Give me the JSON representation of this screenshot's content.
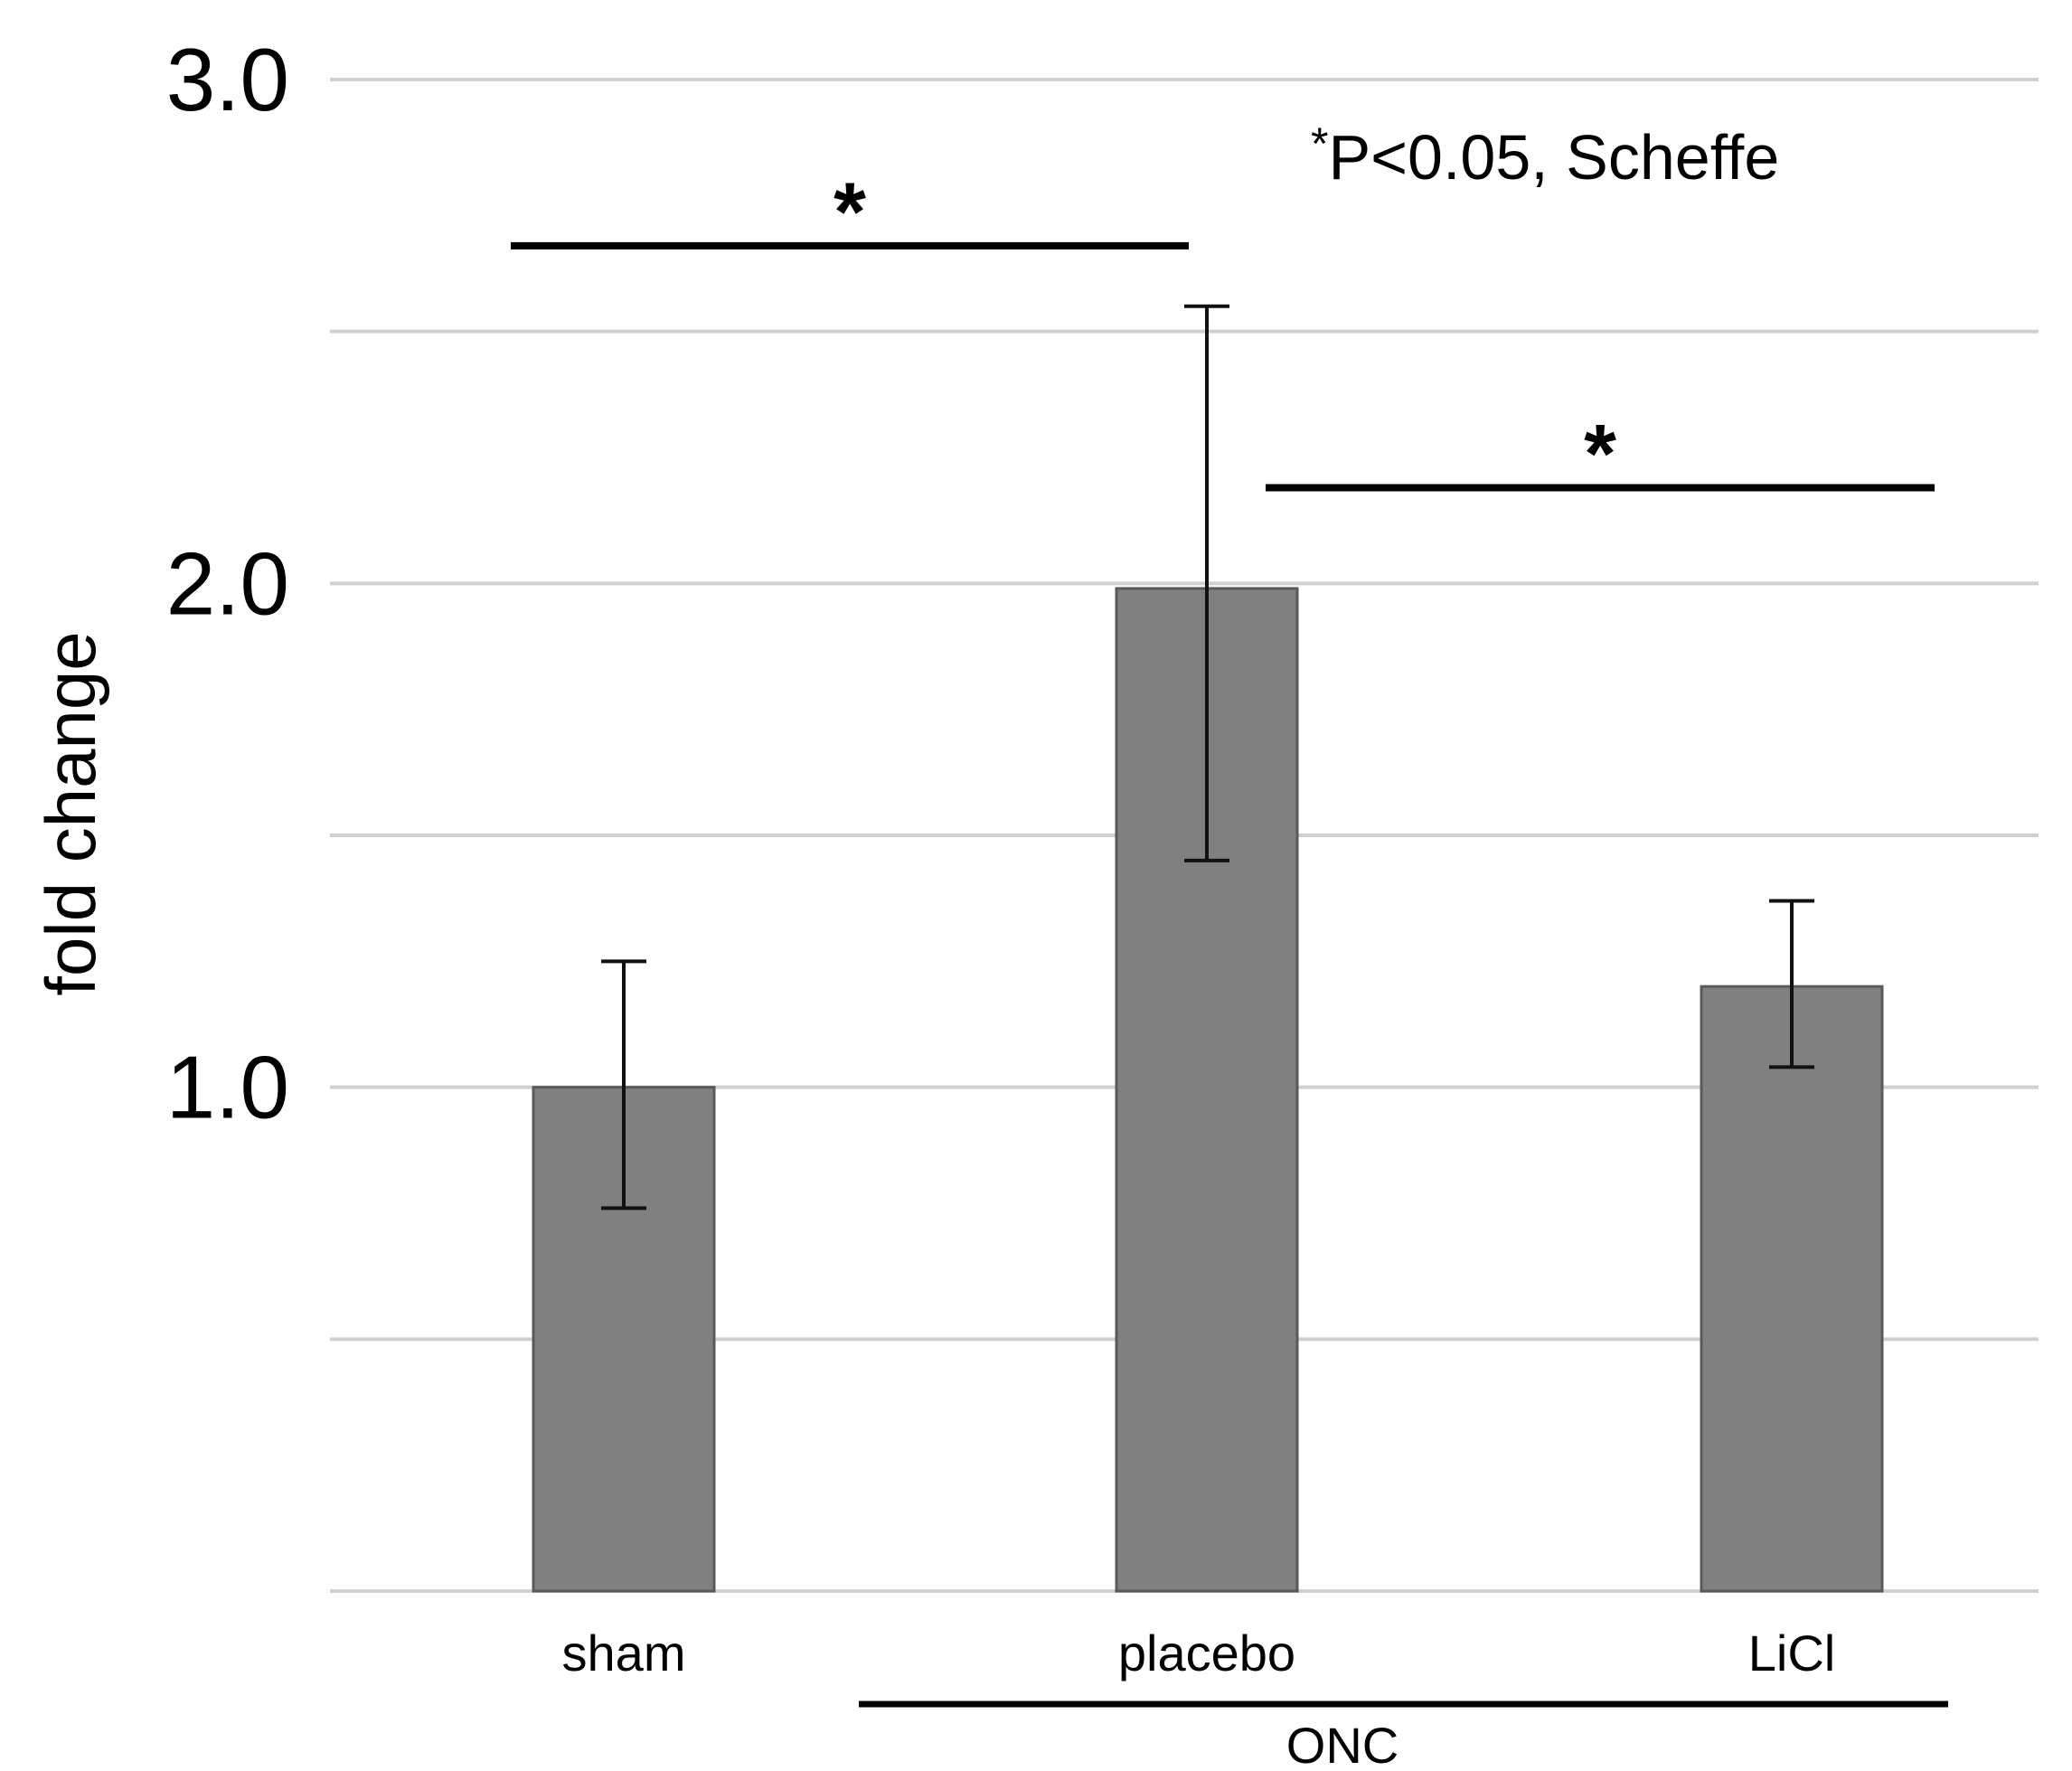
{
  "chart_data": {
    "type": "bar",
    "title": "",
    "xlabel": "",
    "ylabel": "fold change",
    "ylim": [
      0,
      3.0
    ],
    "yticks": [
      {
        "value": 3.0,
        "label": "3.0"
      },
      {
        "value": 2.0,
        "label": "2.0"
      },
      {
        "value": 1.0,
        "label": "1.0"
      }
    ],
    "gridlines": [
      0,
      0.5,
      1.0,
      1.5,
      2.0,
      2.5,
      3.0
    ],
    "categories": [
      "sham",
      "placebo",
      "LiCl"
    ],
    "values": [
      1.0,
      1.99,
      1.2
    ],
    "error_low": [
      0.76,
      1.45,
      1.04
    ],
    "error_high": [
      1.25,
      2.55,
      1.37
    ],
    "bar_color": "#808080",
    "grid_color": "#d0d0d0",
    "group": {
      "label": "ONC",
      "members": [
        "placebo",
        "LiCl"
      ]
    },
    "significance": [
      {
        "from": "sham",
        "to": "placebo",
        "label": "*",
        "level": 2.67
      },
      {
        "from": "placebo",
        "to": "LiCl",
        "label": "*",
        "level": 2.19
      }
    ],
    "annotation": {
      "star": "*",
      "text": "P<0.05, Scheffe"
    }
  }
}
